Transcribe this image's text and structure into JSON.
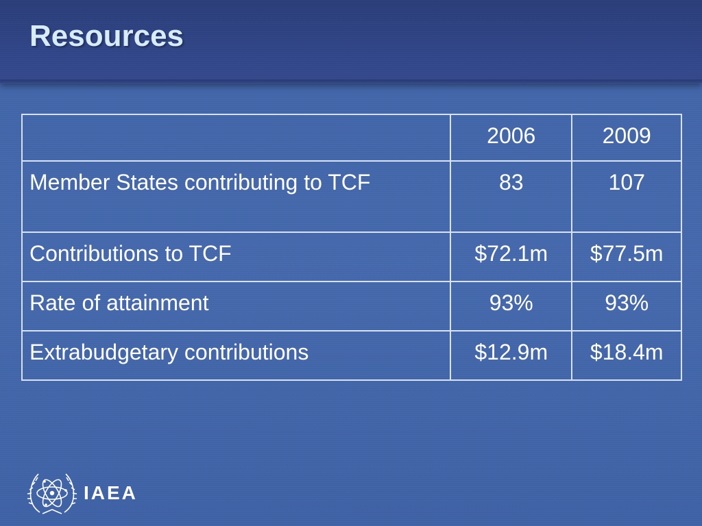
{
  "slide": {
    "title": "Resources"
  },
  "table": {
    "header": [
      "",
      "2006",
      "2009"
    ],
    "rows": [
      [
        "Member States contributing to TCF",
        "83",
        "107"
      ],
      [
        "Contributions to TCF",
        "$72.1m",
        "$77.5m"
      ],
      [
        "Rate of attainment",
        "93%",
        "93%"
      ],
      [
        "Extrabudgetary contributions",
        "$12.9m",
        "$18.4m"
      ]
    ]
  },
  "logo": {
    "text": "IAEA",
    "icon": "iaea-emblem-icon"
  },
  "colors": {
    "background": "#4468ad",
    "header_band": "#30468a",
    "title": "#d8ecff",
    "table_border": "#d9e2f2",
    "text": "#ffffff"
  }
}
